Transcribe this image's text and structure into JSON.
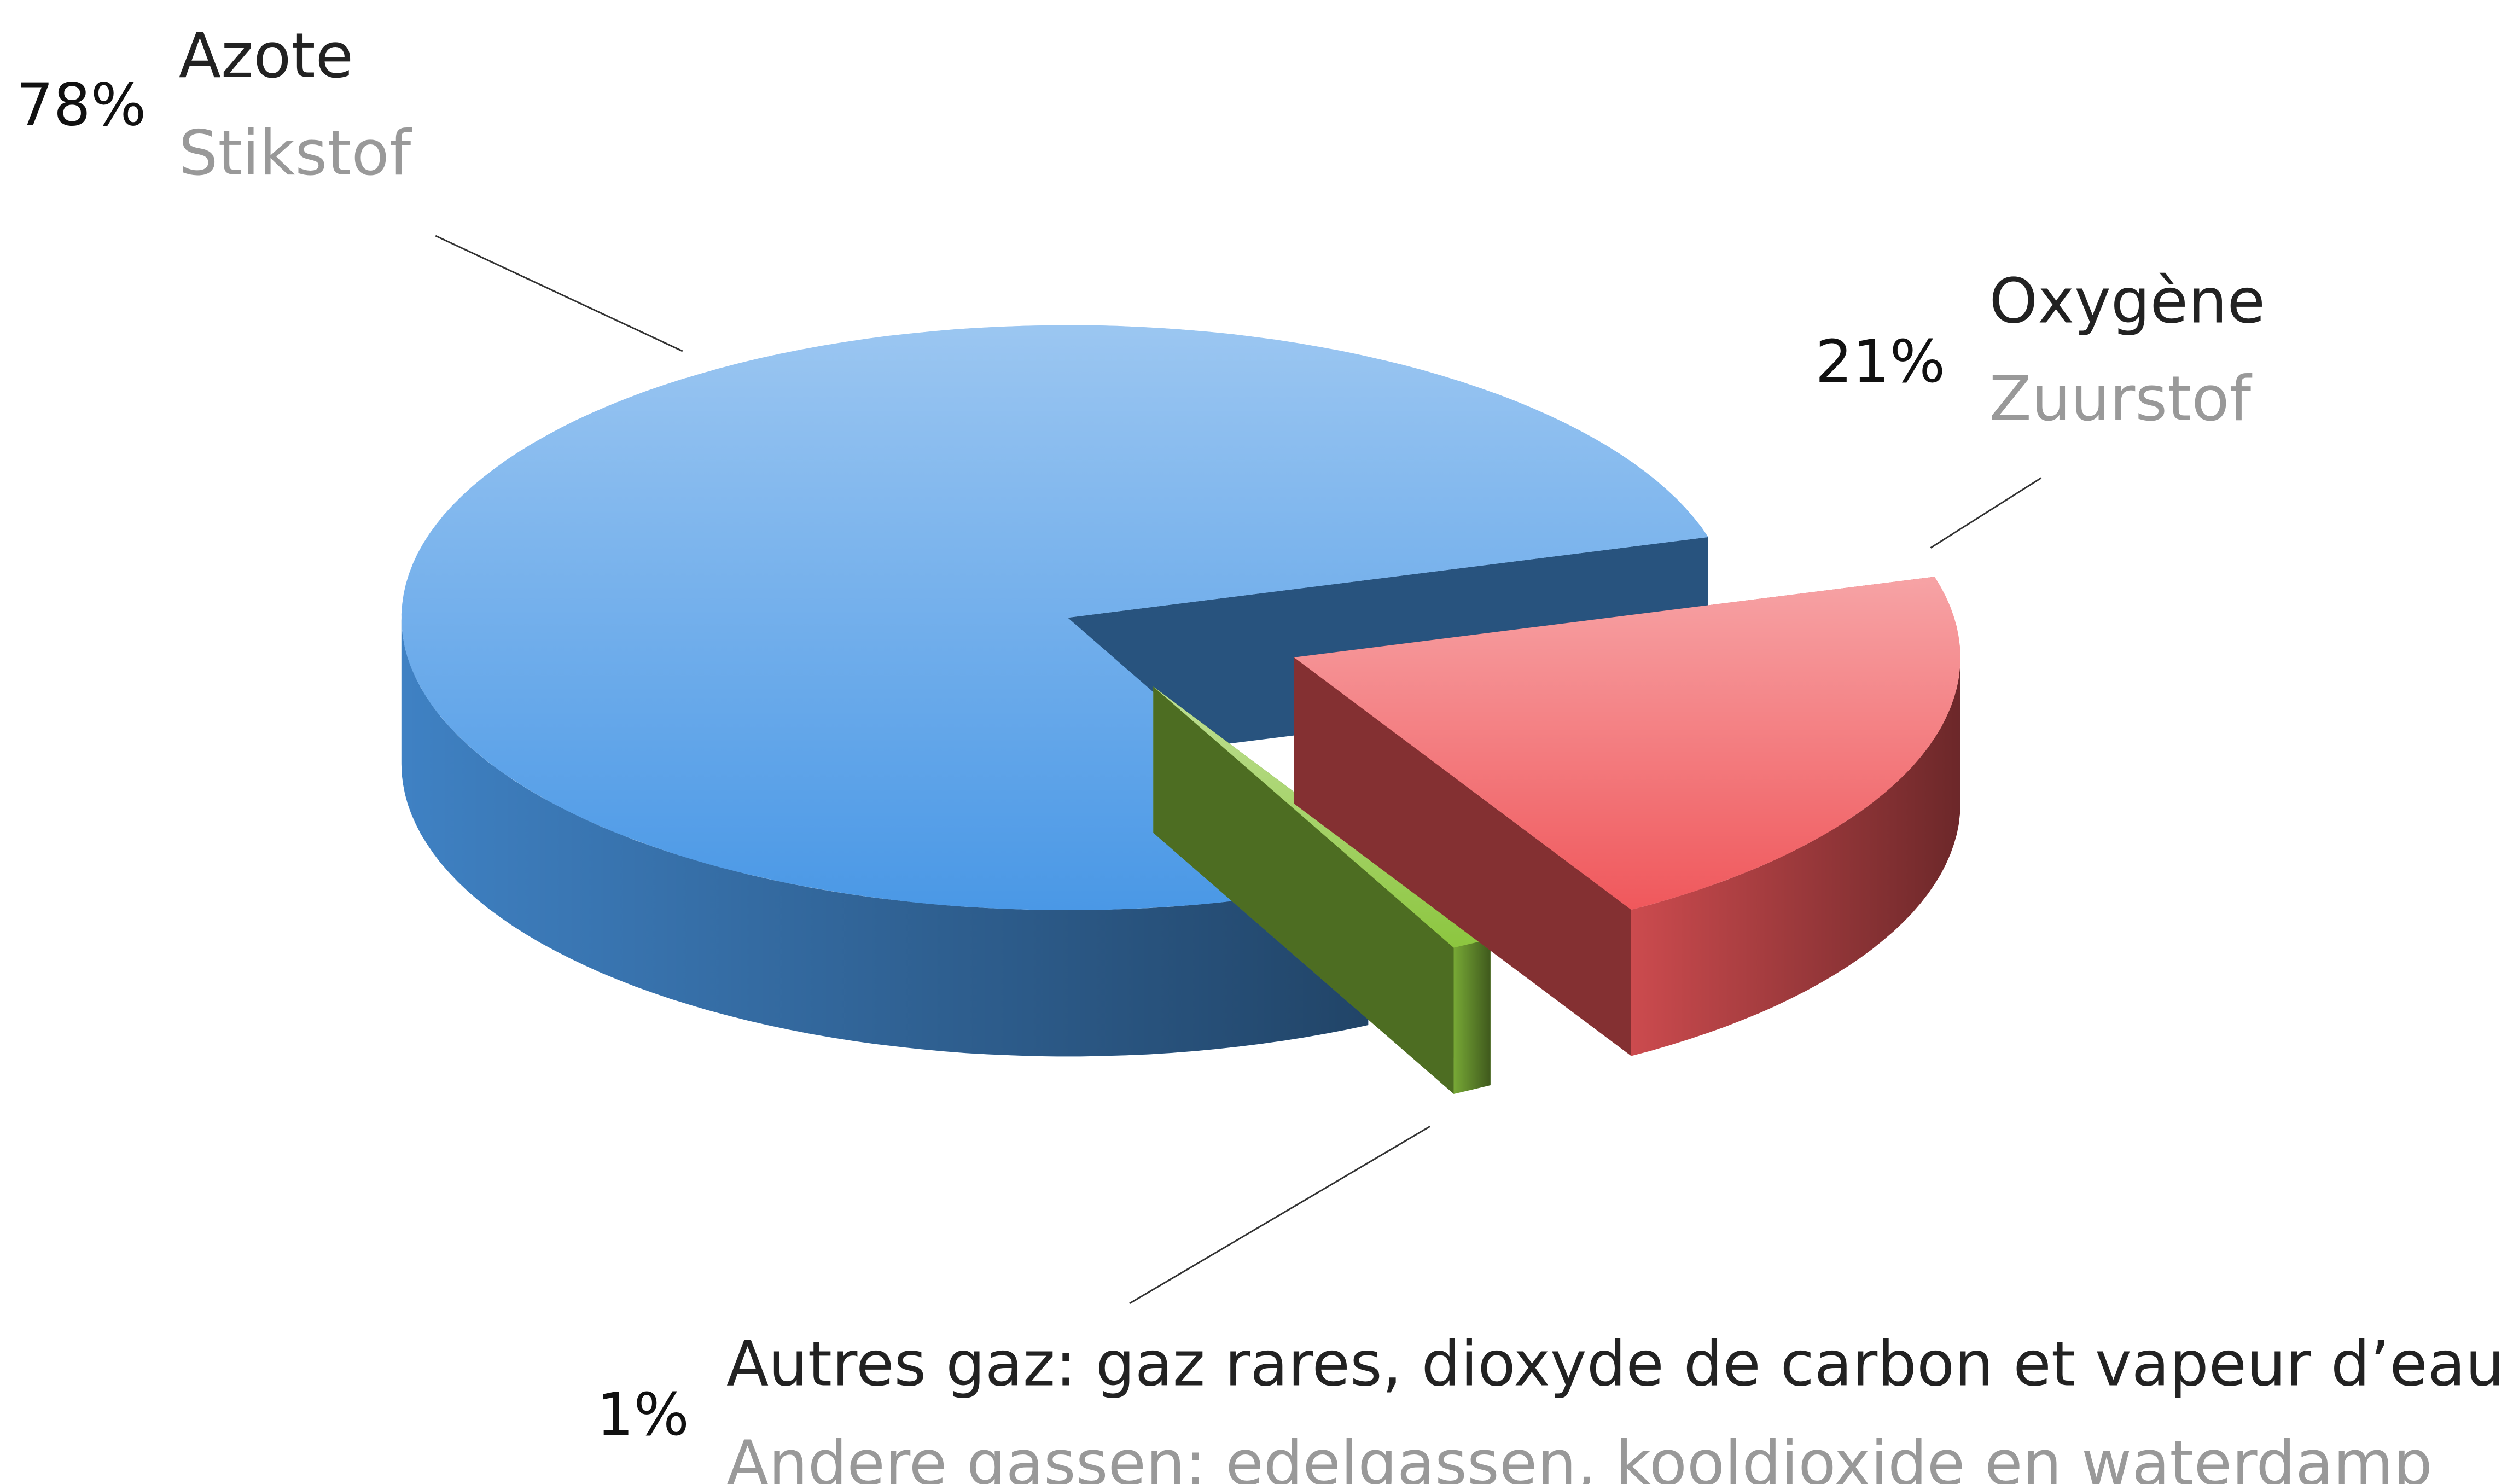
{
  "chart_data": {
    "type": "pie3d",
    "categories": [
      "Azote",
      "Oxygène",
      "Autres gaz: gaz rares, dioxyde de carbon et vapeur d’eau"
    ],
    "translations": [
      "Stikstof",
      "Zuurstof",
      "Andere gassen: edelgassen, kooldioxide en waterdamp"
    ],
    "values": [
      78,
      21,
      1
    ],
    "value_labels": [
      "78%",
      "21%",
      "1%"
    ],
    "colors": [
      "#4a98e6",
      "#f0585c",
      "#8cc63f"
    ]
  }
}
